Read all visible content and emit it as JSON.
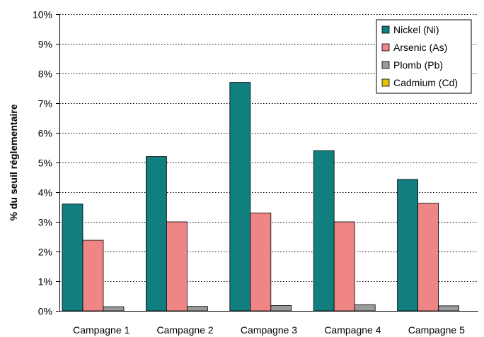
{
  "chart_data": {
    "type": "bar",
    "categories": [
      "Campagne 1",
      "Campagne 2",
      "Campagne 3",
      "Campagne 4",
      "Campagne 5"
    ],
    "series": [
      {
        "name": "Nickel (Ni)",
        "color": "#117f7f",
        "values": [
          3.6,
          5.2,
          7.7,
          5.4,
          4.43
        ]
      },
      {
        "name": "Arsenic (As)",
        "color": "#f08585",
        "values": [
          2.38,
          3.0,
          3.3,
          3.0,
          3.63
        ]
      },
      {
        "name": "Plomb (Pb)",
        "color": "#9a9a9a",
        "values": [
          0.14,
          0.15,
          0.18,
          0.21,
          0.17
        ]
      },
      {
        "name": "Cadmium (Cd)",
        "color": "#e6c400",
        "values": [
          0.0,
          0.0,
          0.0,
          0.0,
          0.0
        ]
      }
    ],
    "title": "",
    "xlabel": "",
    "ylabel": "% du seuil réglementaire",
    "ylim": [
      0,
      10
    ],
    "yticks": [
      0,
      1,
      2,
      3,
      4,
      5,
      6,
      7,
      8,
      9,
      10
    ],
    "ytick_labels": [
      "0%",
      "1%",
      "2%",
      "3%",
      "4%",
      "5%",
      "6%",
      "7%",
      "8%",
      "9%",
      "10%"
    ],
    "grid": true,
    "legend_position": "top-right"
  }
}
